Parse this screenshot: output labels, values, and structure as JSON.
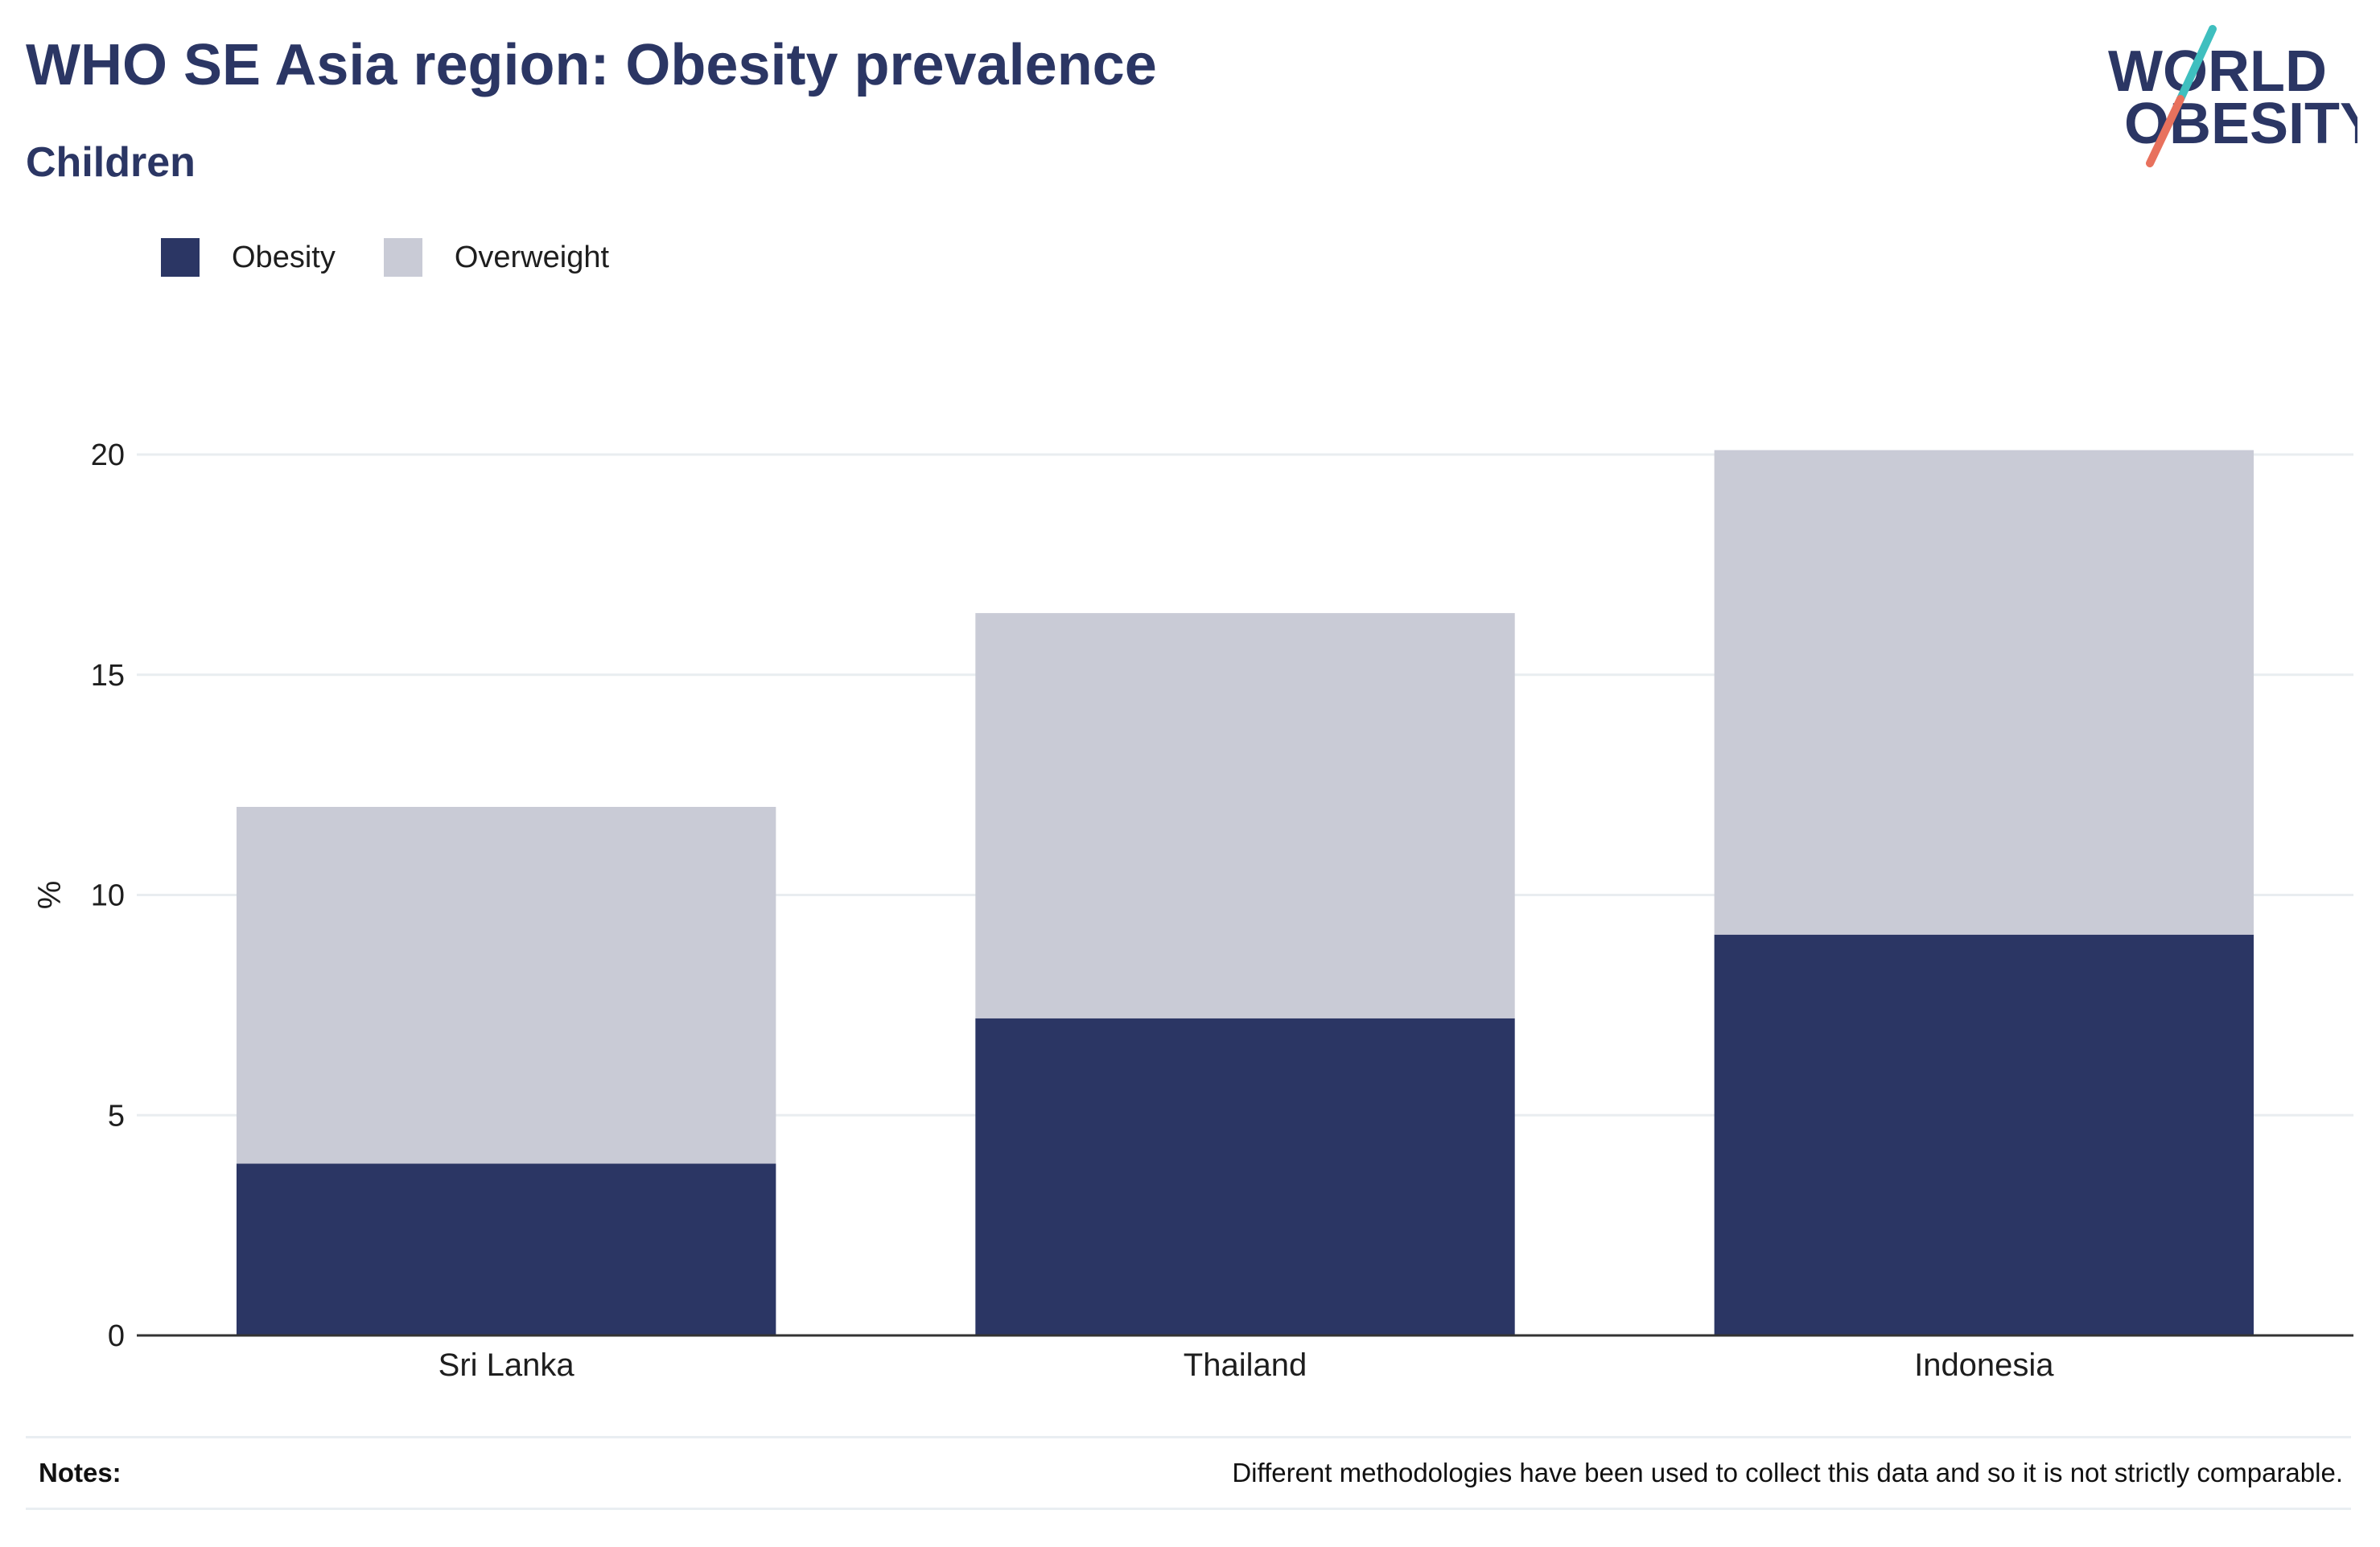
{
  "header": {
    "title": "WHO SE Asia region: Obesity prevalence",
    "subtitle": "Children"
  },
  "logo": {
    "line1": "WORLD",
    "line2": "OBESITY"
  },
  "colors": {
    "obesity": "#2b3664",
    "overweight": "#c9cbd6",
    "text": "#2b3664",
    "grid": "#e9edf0",
    "axis": "#333333",
    "logo_teal": "#3fbfbf",
    "logo_coral": "#e8715d"
  },
  "legend": {
    "items": [
      {
        "label": "Obesity",
        "color_key": "obesity"
      },
      {
        "label": "Overweight",
        "color_key": "overweight"
      }
    ]
  },
  "chart_data": {
    "type": "bar",
    "stacked": true,
    "categories": [
      "Sri Lanka",
      "Thailand",
      "Indonesia"
    ],
    "series": [
      {
        "name": "Obesity",
        "values": [
          3.9,
          7.2,
          9.1
        ]
      },
      {
        "name": "Overweight",
        "values": [
          8.1,
          9.2,
          11.0
        ]
      }
    ],
    "totals": [
      12.0,
      16.4,
      20.1
    ],
    "ylabel": "%",
    "xlabel": "",
    "ylim": [
      0,
      20
    ],
    "yticks": [
      0,
      5,
      10,
      15,
      20
    ],
    "grid": true,
    "legend_position": "top-left"
  },
  "notes": {
    "label": "Notes:",
    "text": "Different methodologies have been used to collect this data and so it is not strictly comparable."
  }
}
